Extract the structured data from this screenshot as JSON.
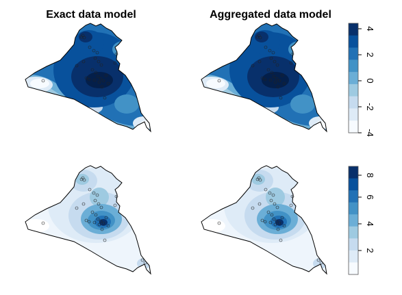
{
  "titles": {
    "left": "Exact data model",
    "right": "Aggregated data model"
  },
  "colorbars": [
    {
      "ticks": [
        "4",
        "2",
        "0",
        "-2",
        "-4"
      ],
      "palette": [
        "#08306b",
        "#08519c",
        "#2171b5",
        "#4292c6",
        "#6baed6",
        "#9ecae1",
        "#c6dbef",
        "#deebf7",
        "#f7fbff"
      ]
    },
    {
      "ticks": [
        "8",
        "6",
        "4",
        "2"
      ],
      "palette": [
        "#08306b",
        "#08519c",
        "#2171b5",
        "#4292c6",
        "#6baed6",
        "#9ecae1",
        "#c6dbef",
        "#deebf7",
        "#f7fbff"
      ]
    }
  ],
  "maps": [
    {
      "name": "mean-exact",
      "scale": "mean"
    },
    {
      "name": "mean-aggregated",
      "scale": "mean"
    },
    {
      "name": "sd-exact",
      "scale": "sd"
    },
    {
      "name": "sd-aggregated",
      "scale": "sd"
    }
  ]
}
